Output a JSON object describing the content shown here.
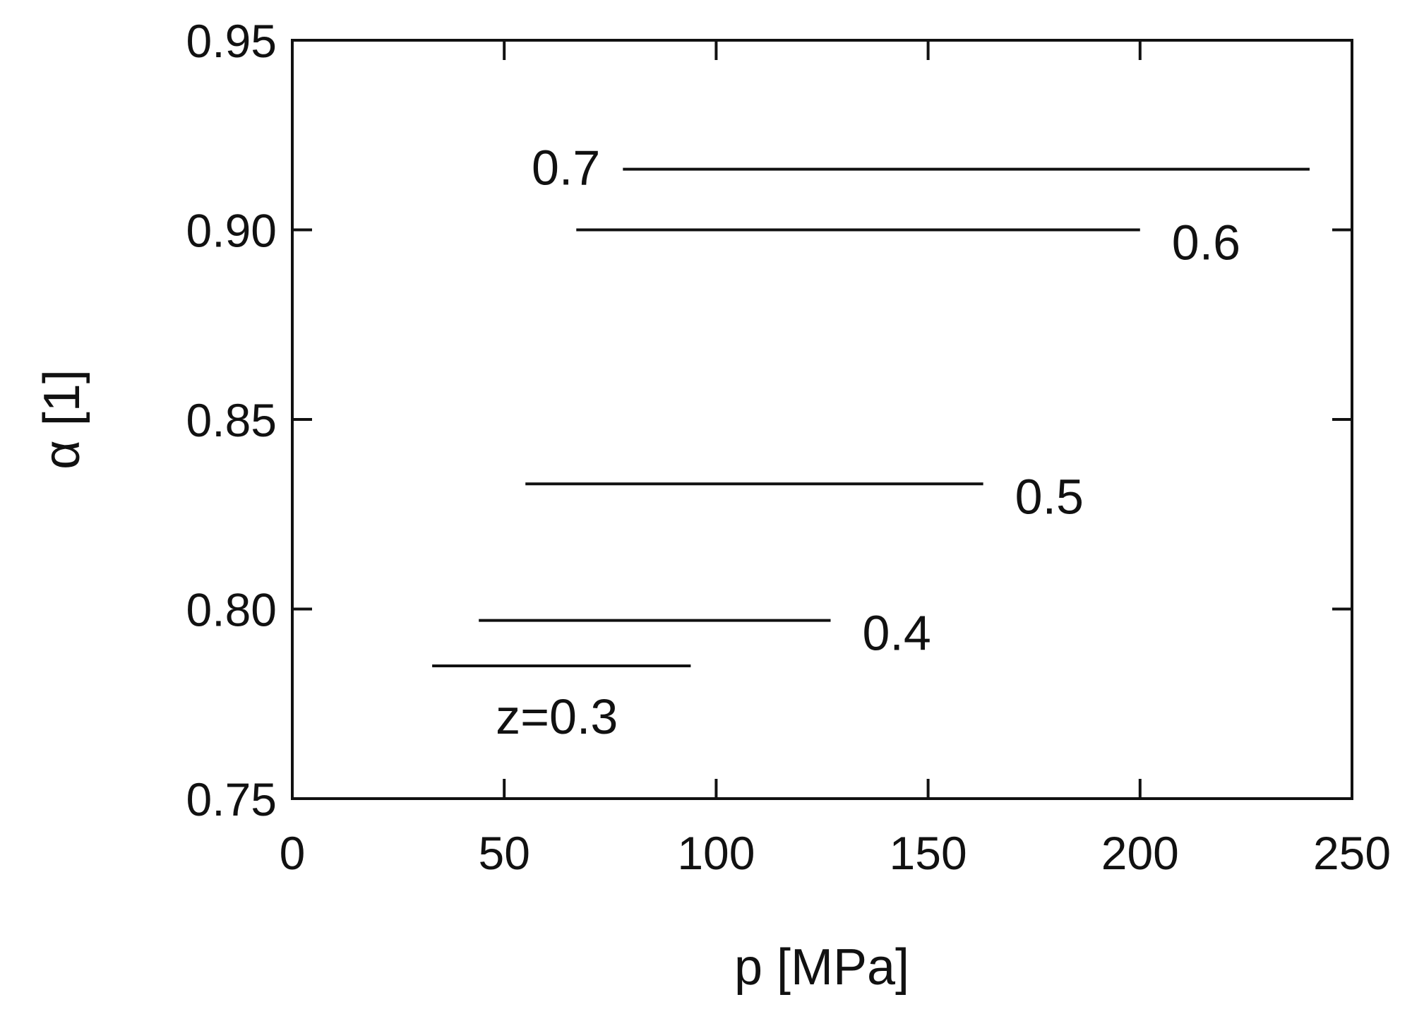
{
  "chart_data": {
    "type": "line",
    "title": "",
    "xlabel": "p [MPa]",
    "ylabel": "α [1]",
    "xlim": [
      0,
      250
    ],
    "ylim": [
      0.75,
      0.95
    ],
    "x_ticks": [
      0,
      50,
      100,
      150,
      200,
      250
    ],
    "y_ticks": [
      0.75,
      0.8,
      0.85,
      0.9,
      0.95
    ],
    "x_tick_labels": [
      "0",
      "50",
      "100",
      "150",
      "200",
      "250"
    ],
    "y_tick_labels": [
      "0.75",
      "0.80",
      "0.85",
      "0.90",
      "0.95"
    ],
    "grid": false,
    "legend": "none",
    "line_color": "#111111",
    "series": [
      {
        "name": "z=0.3",
        "x": [
          33,
          94
        ],
        "y": [
          0.785,
          0.785
        ],
        "label_side": "below"
      },
      {
        "name": "0.4",
        "x": [
          44,
          127
        ],
        "y": [
          0.797,
          0.797
        ],
        "label_side": "right"
      },
      {
        "name": "0.5",
        "x": [
          55,
          163
        ],
        "y": [
          0.833,
          0.833
        ],
        "label_side": "right"
      },
      {
        "name": "0.6",
        "x": [
          67,
          200
        ],
        "y": [
          0.9,
          0.9
        ],
        "label_side": "right"
      },
      {
        "name": "0.7",
        "x": [
          78,
          240
        ],
        "y": [
          0.916,
          0.916
        ],
        "label_side": "left"
      }
    ]
  }
}
